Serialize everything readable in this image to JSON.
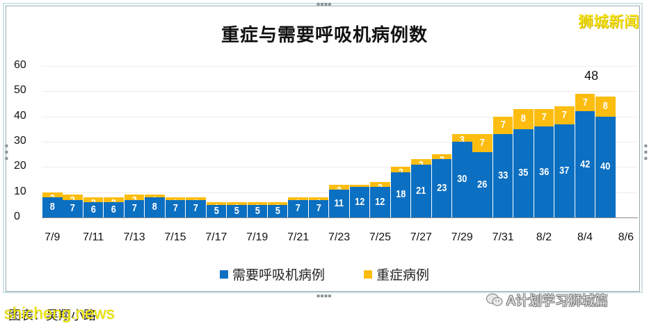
{
  "title": "重症与需要呼吸机病例数",
  "watermark_top": "狮城新闻",
  "caption": "图表：吴翔小路",
  "caption_watermark": "shicheng.news",
  "wechat_watermark": "A计划学习狮城篇",
  "colors": {
    "ventilator": "#0b6fc2",
    "severe": "#fdbd10"
  },
  "total_label": "48",
  "legend": [
    {
      "label": "需要呼吸机病例",
      "color": "#0b6fc2"
    },
    {
      "label": "重症病例",
      "color": "#fdbd10"
    }
  ],
  "y_ticks": [
    "60",
    "50",
    "40",
    "30",
    "20",
    "10",
    "0"
  ],
  "x_ticks": [
    "7/9",
    "7/11",
    "7/13",
    "7/15",
    "7/17",
    "7/19",
    "7/21",
    "7/23",
    "7/25",
    "7/27",
    "7/29",
    "7/31",
    "8/2",
    "8/4",
    "8/6"
  ],
  "chart_data": {
    "type": "bar",
    "stacked": true,
    "title": "重症与需要呼吸机病例数",
    "xlabel": "",
    "ylabel": "",
    "ylim": [
      0,
      60
    ],
    "y_ticks": [
      0,
      10,
      20,
      30,
      40,
      50,
      60
    ],
    "grid": true,
    "legend_position": "bottom",
    "categories": [
      "7/9",
      "7/10",
      "7/11",
      "7/12",
      "7/13",
      "7/14",
      "7/15",
      "7/16",
      "7/17",
      "7/18",
      "7/19",
      "7/20",
      "7/21",
      "7/22",
      "7/23",
      "7/24",
      "7/25",
      "7/26",
      "7/27",
      "7/28",
      "7/29",
      "7/30",
      "7/31",
      "8/1",
      "8/2",
      "8/3",
      "8/4",
      "8/5"
    ],
    "series": [
      {
        "name": "需要呼吸机病例",
        "color": "#0b6fc2",
        "values": [
          8,
          7,
          6,
          6,
          7,
          8,
          7,
          7,
          5,
          5,
          5,
          5,
          7,
          7,
          11,
          12,
          12,
          18,
          21,
          23,
          30,
          26,
          33,
          35,
          36,
          37,
          42,
          40
        ]
      },
      {
        "name": "重症病例",
        "color": "#fdbd10",
        "values": [
          2,
          2,
          2,
          2,
          2,
          1,
          1,
          1,
          1,
          1,
          1,
          1,
          1,
          1,
          2,
          1,
          2,
          2,
          2,
          2,
          3,
          7,
          7,
          8,
          7,
          7,
          7,
          8
        ]
      }
    ],
    "annotations": [
      {
        "category": "8/5",
        "text": "48"
      }
    ]
  }
}
